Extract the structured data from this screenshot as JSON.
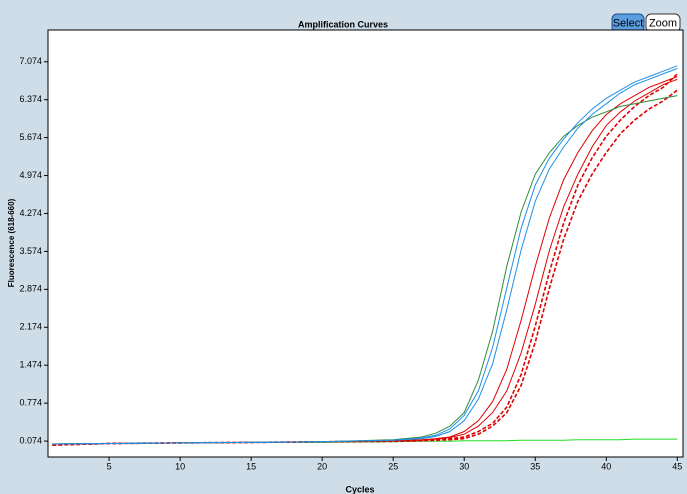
{
  "toolbar": {
    "buttons": [
      "Select",
      "Zoom"
    ]
  },
  "chart_data": {
    "type": "line",
    "title": "Amplification Curves",
    "xlabel": "Cycles",
    "ylabel": "Fluorescence (618-660)",
    "x": [
      1,
      5,
      10,
      15,
      20,
      25,
      27,
      28,
      29,
      30,
      31,
      32,
      33,
      34,
      35,
      36,
      37,
      38,
      39,
      40,
      41,
      42,
      43,
      44,
      45
    ],
    "xlim": [
      0.7,
      45.4
    ],
    "xticks": [
      5,
      10,
      15,
      20,
      25,
      30,
      35,
      40,
      45
    ],
    "ylim": [
      -0.22,
      7.66
    ],
    "yticks": [
      0.074,
      0.774,
      1.474,
      2.174,
      2.874,
      3.574,
      4.274,
      4.974,
      5.674,
      6.374,
      7.074
    ],
    "grid": false,
    "series": [
      {
        "color": "#22dd22",
        "dash": false,
        "values": [
          0.02,
          0.03,
          0.04,
          0.05,
          0.05,
          0.06,
          0.07,
          0.07,
          0.07,
          0.08,
          0.08,
          0.08,
          0.08,
          0.09,
          0.09,
          0.09,
          0.09,
          0.1,
          0.1,
          0.1,
          0.1,
          0.11,
          0.11,
          0.11,
          0.11
        ]
      },
      {
        "color": "#e00000",
        "dash": true,
        "values": [
          0.0,
          0.03,
          0.04,
          0.05,
          0.06,
          0.07,
          0.08,
          0.1,
          0.12,
          0.15,
          0.25,
          0.4,
          0.7,
          1.3,
          2.2,
          3.2,
          4.1,
          4.8,
          5.3,
          5.7,
          6.0,
          6.25,
          6.45,
          6.6,
          6.85
        ]
      },
      {
        "color": "#e00000",
        "dash": true,
        "values": [
          0.0,
          0.03,
          0.04,
          0.05,
          0.06,
          0.07,
          0.08,
          0.09,
          0.1,
          0.12,
          0.2,
          0.35,
          0.6,
          1.1,
          1.9,
          2.9,
          3.8,
          4.5,
          5.0,
          5.4,
          5.75,
          6.0,
          6.2,
          6.35,
          6.55
        ]
      },
      {
        "color": "#e00000",
        "dash": false,
        "values": [
          0.02,
          0.03,
          0.04,
          0.05,
          0.06,
          0.08,
          0.1,
          0.12,
          0.15,
          0.25,
          0.45,
          0.8,
          1.4,
          2.3,
          3.3,
          4.2,
          4.9,
          5.4,
          5.8,
          6.1,
          6.3,
          6.45,
          6.6,
          6.7,
          6.8
        ]
      },
      {
        "color": "#e00000",
        "dash": false,
        "values": [
          0.02,
          0.03,
          0.04,
          0.05,
          0.06,
          0.08,
          0.09,
          0.11,
          0.14,
          0.2,
          0.35,
          0.6,
          1.0,
          1.7,
          2.6,
          3.6,
          4.4,
          5.0,
          5.5,
          5.9,
          6.15,
          6.35,
          6.5,
          6.65,
          6.75
        ]
      },
      {
        "color": "#2e8b3a",
        "dash": false,
        "values": [
          0.02,
          0.03,
          0.04,
          0.05,
          0.06,
          0.1,
          0.15,
          0.22,
          0.35,
          0.6,
          1.2,
          2.1,
          3.3,
          4.3,
          5.0,
          5.4,
          5.7,
          5.9,
          6.05,
          6.15,
          6.25,
          6.3,
          6.35,
          6.4,
          6.45
        ]
      },
      {
        "color": "#1e90e8",
        "dash": false,
        "values": [
          0.02,
          0.03,
          0.04,
          0.05,
          0.06,
          0.09,
          0.12,
          0.16,
          0.25,
          0.45,
          0.85,
          1.5,
          2.5,
          3.6,
          4.5,
          5.1,
          5.5,
          5.85,
          6.1,
          6.3,
          6.5,
          6.65,
          6.75,
          6.85,
          6.95
        ]
      },
      {
        "color": "#1e90e8",
        "dash": false,
        "values": [
          0.02,
          0.03,
          0.04,
          0.05,
          0.06,
          0.09,
          0.13,
          0.18,
          0.3,
          0.55,
          1.0,
          1.8,
          2.9,
          4.0,
          4.8,
          5.3,
          5.65,
          5.95,
          6.2,
          6.4,
          6.55,
          6.7,
          6.8,
          6.9,
          7.0
        ]
      }
    ]
  }
}
